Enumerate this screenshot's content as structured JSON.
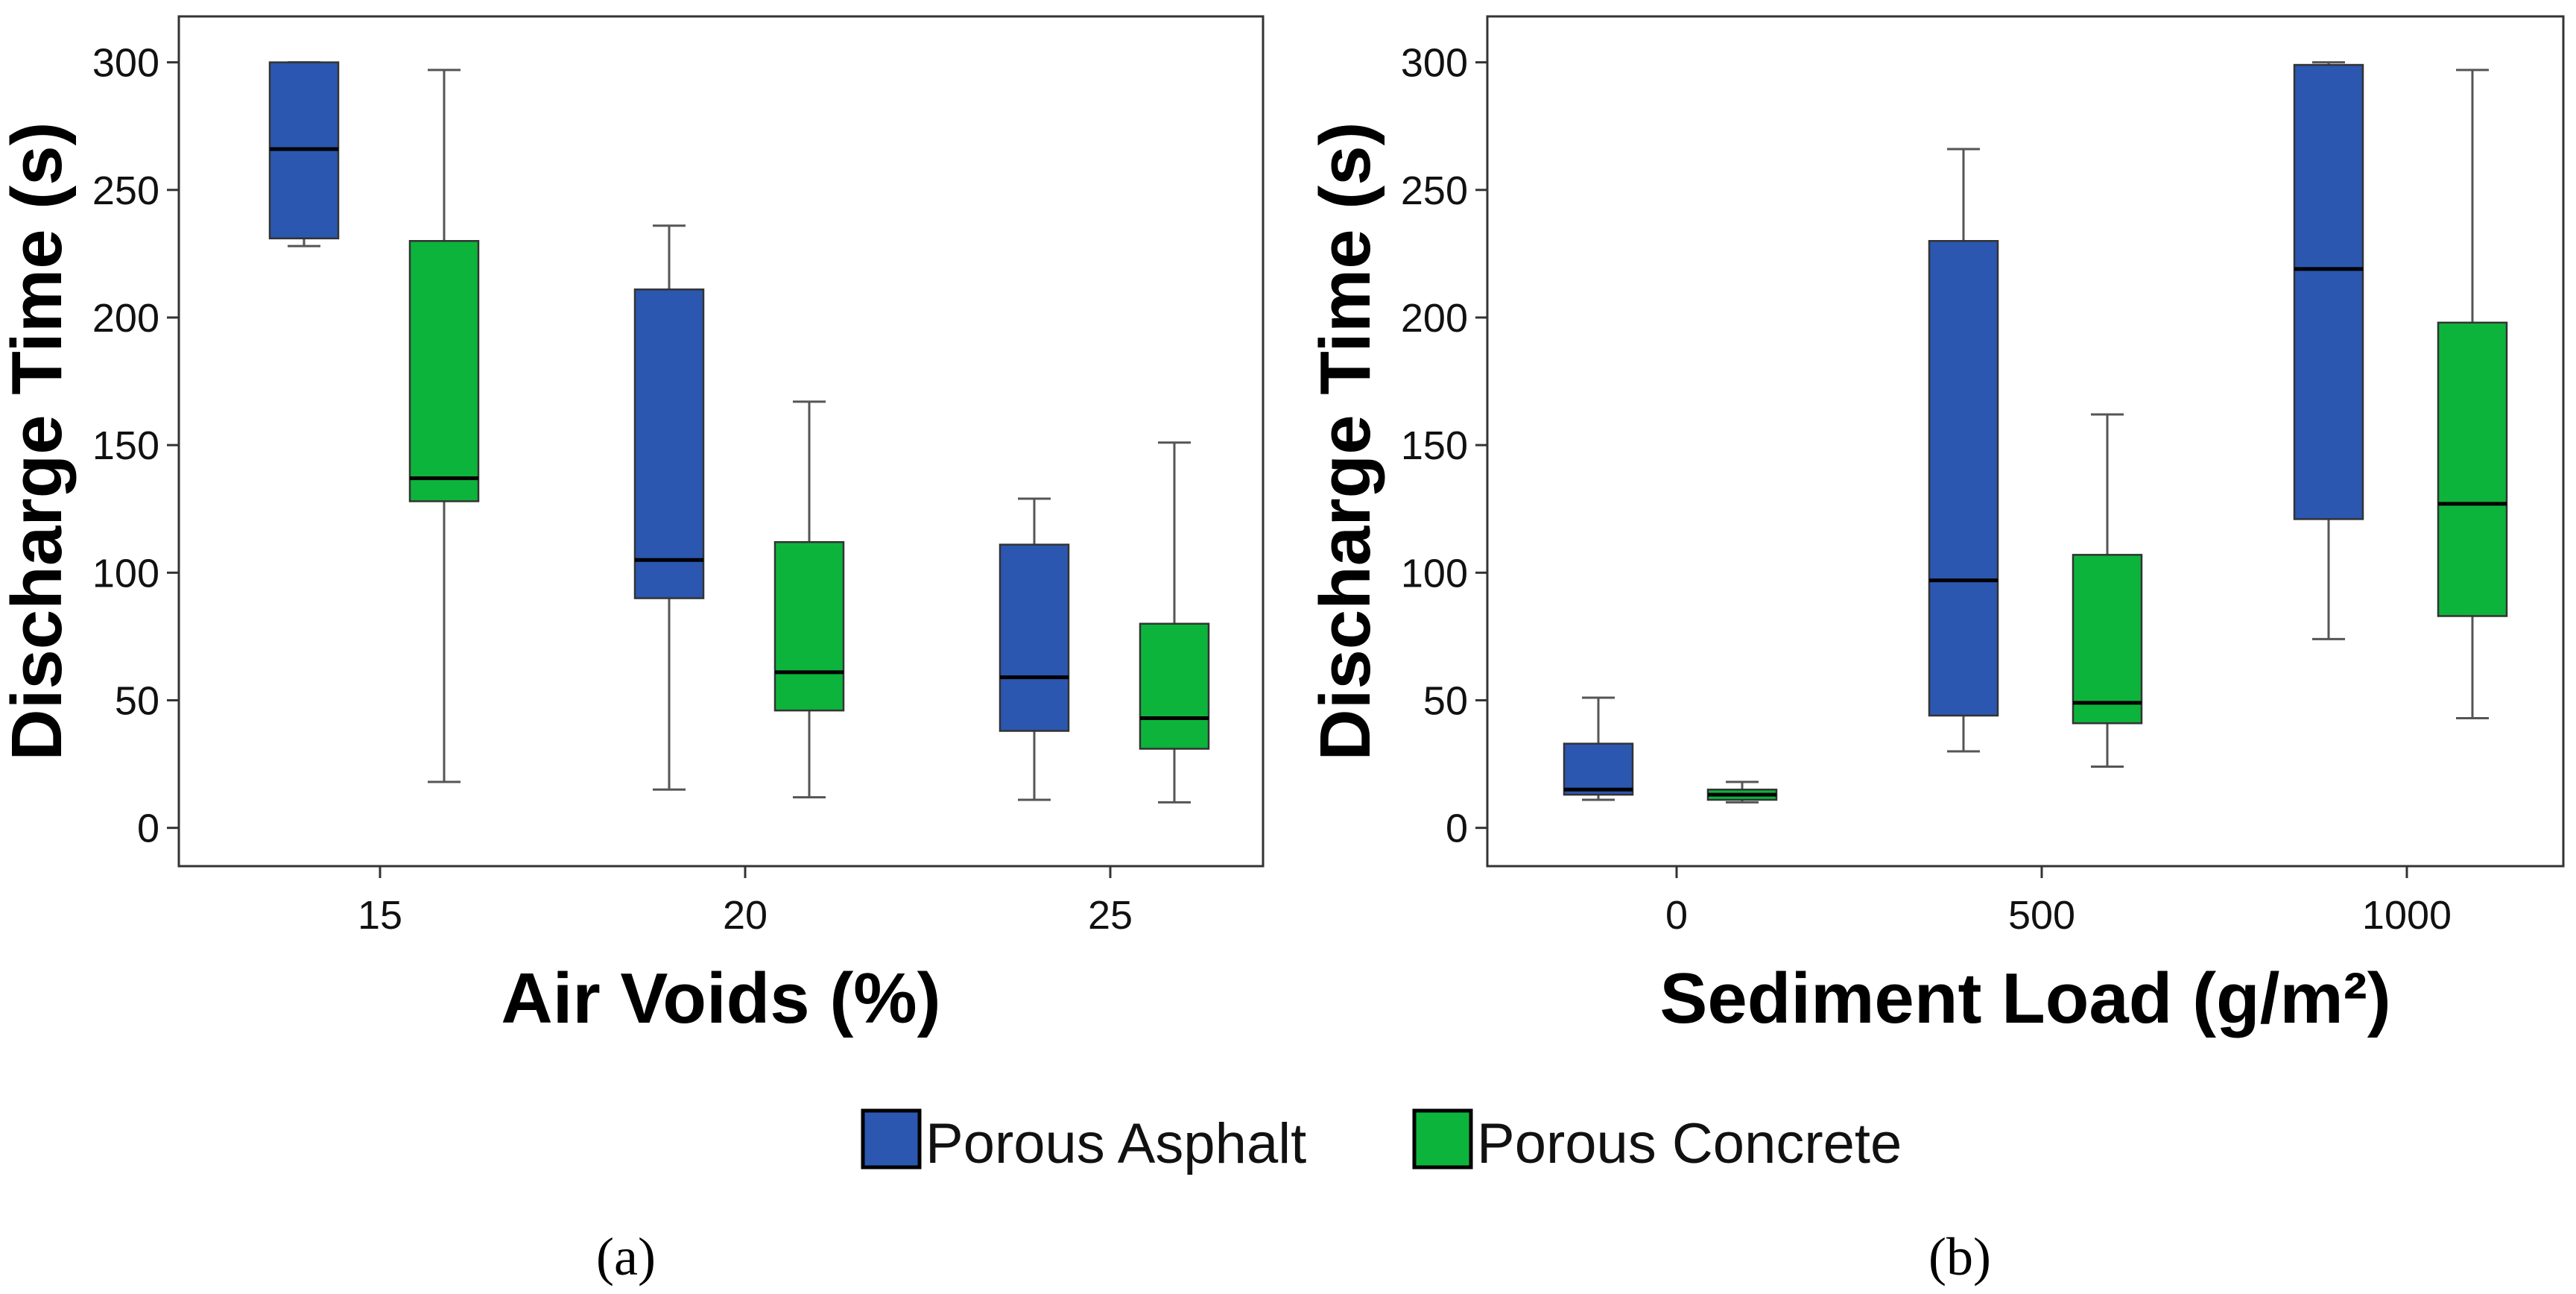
{
  "colors": {
    "asphalt": "#2b57b0",
    "concrete": "#0db43c",
    "axis": "#333333"
  },
  "legend": [
    {
      "label": "Porous Asphalt",
      "color": "#2b57b0"
    },
    {
      "label": "Porous Concrete",
      "color": "#0db43c"
    }
  ],
  "panel_labels": [
    "(a)",
    "(b)"
  ],
  "chart_data": [
    {
      "type": "box",
      "panel": "(a)",
      "xlabel": "Air Voids (%)",
      "ylabel": "Discharge Time (s)",
      "ylim": [
        -15,
        318
      ],
      "yticks": [
        "0",
        "50",
        "100",
        "150",
        "200",
        "250",
        "300"
      ],
      "categories": [
        "15",
        "20",
        "25"
      ],
      "series": [
        {
          "name": "Porous Asphalt",
          "boxes": [
            {
              "min": 228,
              "q1": 231,
              "median": 266,
              "q3": 300,
              "max": 300
            },
            {
              "min": 15,
              "q1": 90,
              "median": 105,
              "q3": 211,
              "max": 236
            },
            {
              "min": 11,
              "q1": 38,
              "median": 59,
              "q3": 111,
              "max": 129
            }
          ]
        },
        {
          "name": "Porous Concrete",
          "boxes": [
            {
              "min": 18,
              "q1": 128,
              "median": 137,
              "q3": 230,
              "max": 297
            },
            {
              "min": 12,
              "q1": 46,
              "median": 61,
              "q3": 112,
              "max": 167
            },
            {
              "min": 10,
              "q1": 31,
              "median": 43,
              "q3": 80,
              "max": 151
            }
          ]
        }
      ]
    },
    {
      "type": "box",
      "panel": "(b)",
      "xlabel": "Sediment Load (g/m²)",
      "ylabel": "Discharge Time (s)",
      "ylim": [
        -15,
        318
      ],
      "yticks": [
        "0",
        "50",
        "100",
        "150",
        "200",
        "250",
        "300"
      ],
      "categories": [
        "0",
        "500",
        "1000"
      ],
      "series": [
        {
          "name": "Porous Asphalt",
          "boxes": [
            {
              "min": 11,
              "q1": 13,
              "median": 15,
              "q3": 33,
              "max": 51
            },
            {
              "min": 30,
              "q1": 44,
              "median": 97,
              "q3": 230,
              "max": 266
            },
            {
              "min": 74,
              "q1": 121,
              "median": 219,
              "q3": 299,
              "max": 300
            }
          ]
        },
        {
          "name": "Porous Concrete",
          "boxes": [
            {
              "min": 10,
              "q1": 11,
              "median": 13,
              "q3": 15,
              "max": 18
            },
            {
              "min": 24,
              "q1": 41,
              "median": 49,
              "q3": 107,
              "max": 162
            },
            {
              "min": 43,
              "q1": 83,
              "median": 127,
              "q3": 198,
              "max": 297
            }
          ]
        }
      ]
    }
  ]
}
